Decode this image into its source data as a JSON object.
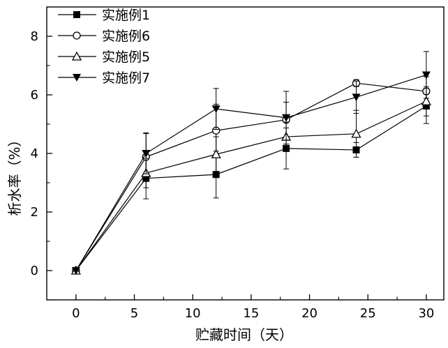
{
  "chart_data": {
    "type": "line",
    "title": "",
    "xlabel": "贮藏时间（天）",
    "ylabel": "析水率（%）",
    "x": [
      0,
      6,
      12,
      18,
      24,
      30
    ],
    "xlim": [
      -2.5,
      31.5
    ],
    "ylim": [
      -1.0,
      9.0
    ],
    "xticks": [
      "0",
      "5",
      "10",
      "15",
      "20",
      "25",
      "30"
    ],
    "yticks": [
      "0",
      "2",
      "4",
      "6",
      "8"
    ],
    "grid": false,
    "legend_position": "top-left",
    "series": [
      {
        "name": "实施例1",
        "marker": "filled-square",
        "color": "#000000",
        "values": [
          0,
          3.15,
          3.28,
          4.17,
          4.12,
          5.62
        ],
        "errors": [
          0,
          0.7,
          0.8,
          0.7,
          0.25,
          0.6
        ]
      },
      {
        "name": "实施例6",
        "marker": "open-circle",
        "color": "#000000",
        "values": [
          0,
          3.88,
          4.78,
          5.15,
          6.4,
          6.12
        ],
        "errors": [
          0,
          0.8,
          0.9,
          0.6,
          0.12,
          0.5
        ]
      },
      {
        "name": "实施例5",
        "marker": "open-triangle-up",
        "color": "#000000",
        "values": [
          0,
          3.33,
          3.97,
          4.57,
          4.67,
          5.78
        ],
        "errors": [
          0,
          0.5,
          0.6,
          0.5,
          0.8,
          0.5
        ]
      },
      {
        "name": "实施例7",
        "marker": "filled-triangle-down",
        "color": "#000000",
        "values": [
          0,
          4.0,
          5.52,
          5.22,
          5.92,
          6.68
        ],
        "errors": [
          0,
          0.7,
          0.7,
          0.9,
          0.55,
          0.8
        ]
      }
    ]
  }
}
